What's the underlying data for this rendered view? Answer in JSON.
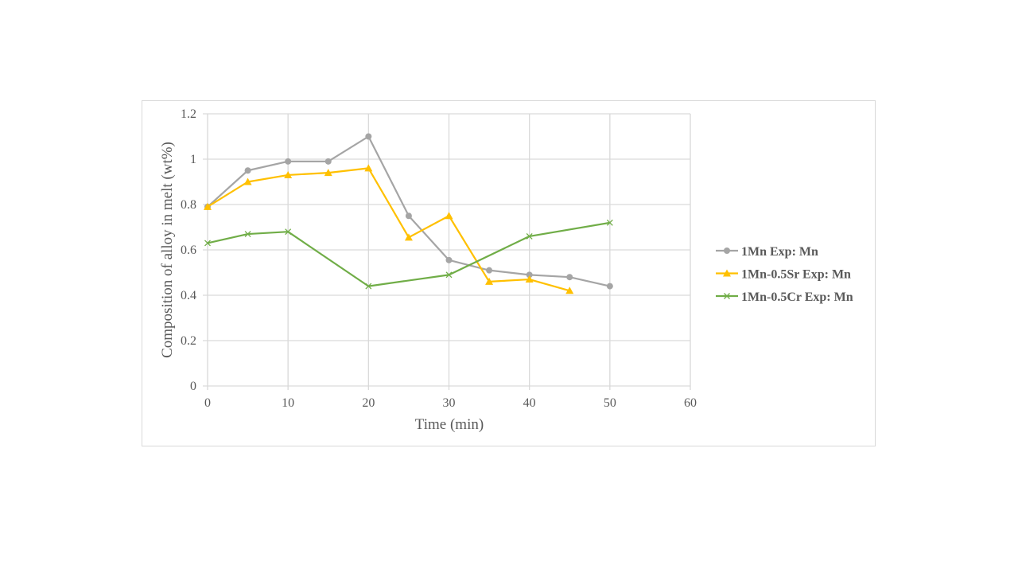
{
  "chart_data": {
    "type": "line",
    "title": "",
    "xlabel": "Time (min)",
    "ylabel": "Composition of alloy in melt (wt%)",
    "xlim": [
      0,
      60
    ],
    "ylim": [
      0,
      1.2
    ],
    "x_ticks": [
      0,
      10,
      20,
      30,
      40,
      50,
      60
    ],
    "y_ticks": [
      0,
      0.2,
      0.4,
      0.6,
      0.8,
      1,
      1.2
    ],
    "x_tick_labels": [
      "0",
      "10",
      "20",
      "30",
      "40",
      "50",
      "60"
    ],
    "y_tick_labels": [
      "0",
      "0.2",
      "0.4",
      "0.6",
      "0.8",
      "1",
      "1.2"
    ],
    "grid": true,
    "legend_position": "right",
    "series": [
      {
        "name": "1Mn Exp: Mn",
        "color": "#a5a5a5",
        "marker": "circle",
        "x": [
          0,
          5,
          10,
          15,
          20,
          25,
          30,
          35,
          40,
          45,
          50
        ],
        "values": [
          0.79,
          0.95,
          0.99,
          0.99,
          1.1,
          0.75,
          0.555,
          0.51,
          0.49,
          0.48,
          0.44
        ]
      },
      {
        "name": "1Mn-0.5Sr Exp: Mn",
        "color": "#ffc000",
        "marker": "triangle",
        "x": [
          0,
          5,
          10,
          15,
          20,
          25,
          30,
          35,
          40,
          45
        ],
        "values": [
          0.79,
          0.9,
          0.93,
          0.94,
          0.96,
          0.655,
          0.75,
          0.46,
          0.47,
          0.42
        ]
      },
      {
        "name": "1Mn-0.5Cr Exp: Mn",
        "color": "#70ad47",
        "marker": "x",
        "x": [
          0,
          5,
          10,
          20,
          30,
          40,
          50
        ],
        "values": [
          0.63,
          0.67,
          0.68,
          0.44,
          0.49,
          0.66,
          0.72
        ]
      }
    ]
  }
}
